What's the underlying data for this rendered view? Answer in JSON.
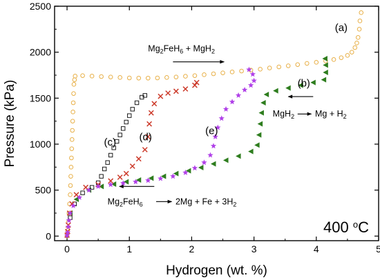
{
  "chart_data": {
    "type": "scatter",
    "xlabel": "Hydrogen (wt. %)",
    "ylabel": "Pressure (kPa)",
    "xlim": [
      -0.2,
      5.0
    ],
    "ylim": [
      -50,
      2500
    ],
    "xticks": [
      0,
      1,
      2,
      3,
      4,
      5
    ],
    "yticks": [
      0,
      500,
      1000,
      1500,
      2000,
      2500
    ],
    "grid": false,
    "legend": "none",
    "temperature_label": {
      "text": "400 ",
      "superscript": "o",
      "unit": "C"
    },
    "series": [
      {
        "label": "(a)",
        "marker": "circle",
        "color": "#e8b048",
        "points": [
          [
            0.0,
            0
          ],
          [
            0.01,
            60
          ],
          [
            0.02,
            150
          ],
          [
            0.03,
            250
          ],
          [
            0.04,
            350
          ],
          [
            0.05,
            450
          ],
          [
            0.055,
            550
          ],
          [
            0.06,
            650
          ],
          [
            0.065,
            750
          ],
          [
            0.07,
            850
          ],
          [
            0.075,
            950
          ],
          [
            0.08,
            1050
          ],
          [
            0.085,
            1150
          ],
          [
            0.09,
            1250
          ],
          [
            0.095,
            1350
          ],
          [
            0.1,
            1450
          ],
          [
            0.105,
            1550
          ],
          [
            0.11,
            1650
          ],
          [
            0.12,
            1700
          ],
          [
            0.13,
            1740
          ],
          [
            0.25,
            1745
          ],
          [
            0.4,
            1740
          ],
          [
            0.55,
            1735
          ],
          [
            0.7,
            1730
          ],
          [
            0.85,
            1725
          ],
          [
            1.0,
            1720
          ],
          [
            1.15,
            1718
          ],
          [
            1.3,
            1718
          ],
          [
            1.45,
            1720
          ],
          [
            1.6,
            1725
          ],
          [
            1.75,
            1730
          ],
          [
            1.9,
            1738
          ],
          [
            2.05,
            1745
          ],
          [
            2.2,
            1755
          ],
          [
            2.35,
            1765
          ],
          [
            2.5,
            1775
          ],
          [
            2.65,
            1785
          ],
          [
            2.8,
            1795
          ],
          [
            2.95,
            1805
          ],
          [
            3.1,
            1815
          ],
          [
            3.25,
            1828
          ],
          [
            3.4,
            1840
          ],
          [
            3.55,
            1852
          ],
          [
            3.7,
            1865
          ],
          [
            3.85,
            1878
          ],
          [
            4.0,
            1890
          ],
          [
            4.15,
            1905
          ],
          [
            4.28,
            1920
          ],
          [
            4.4,
            1940
          ],
          [
            4.5,
            1965
          ],
          [
            4.57,
            2000
          ],
          [
            4.62,
            2050
          ],
          [
            4.65,
            2100
          ],
          [
            4.67,
            2160
          ],
          [
            4.69,
            2250
          ],
          [
            4.7,
            2340
          ],
          [
            4.72,
            2430
          ]
        ]
      },
      {
        "label": "(b)",
        "marker": "triangle-left",
        "color": "#2e7d1e",
        "points": [
          [
            0.05,
            250
          ],
          [
            0.15,
            400
          ],
          [
            0.35,
            500
          ],
          [
            0.55,
            540
          ],
          [
            0.75,
            565
          ],
          [
            0.95,
            590
          ],
          [
            1.15,
            610
          ],
          [
            1.35,
            630
          ],
          [
            1.55,
            650
          ],
          [
            1.75,
            680
          ],
          [
            1.95,
            710
          ],
          [
            2.15,
            745
          ],
          [
            2.35,
            785
          ],
          [
            2.55,
            825
          ],
          [
            2.75,
            870
          ],
          [
            2.95,
            920
          ],
          [
            3.05,
            990
          ],
          [
            3.08,
            1100
          ],
          [
            3.1,
            1220
          ],
          [
            3.12,
            1340
          ],
          [
            3.15,
            1450
          ],
          [
            3.2,
            1540
          ],
          [
            3.35,
            1580
          ],
          [
            3.55,
            1610
          ],
          [
            3.75,
            1640
          ],
          [
            3.95,
            1670
          ],
          [
            4.12,
            1700
          ],
          [
            4.15,
            1780
          ],
          [
            4.15,
            1860
          ],
          [
            4.14,
            1930
          ]
        ]
      },
      {
        "label": "(c)",
        "marker": "square",
        "color": "#1a1a1a",
        "points": [
          [
            0.05,
            200
          ],
          [
            0.12,
            350
          ],
          [
            0.25,
            470
          ],
          [
            0.4,
            530
          ],
          [
            0.5,
            580
          ],
          [
            0.55,
            650
          ],
          [
            0.6,
            730
          ],
          [
            0.65,
            800
          ],
          [
            0.7,
            880
          ],
          [
            0.75,
            960
          ],
          [
            0.8,
            1030
          ],
          [
            0.85,
            1100
          ],
          [
            0.9,
            1170
          ],
          [
            0.95,
            1240
          ],
          [
            1.0,
            1310
          ],
          [
            1.05,
            1380
          ],
          [
            1.12,
            1450
          ],
          [
            1.2,
            1510
          ],
          [
            1.25,
            1530
          ]
        ]
      },
      {
        "label": "(d)",
        "marker": "x",
        "color": "#cc3a2a",
        "points": [
          [
            0.0,
            10
          ],
          [
            0.01,
            50
          ],
          [
            0.02,
            120
          ],
          [
            0.04,
            250
          ],
          [
            0.08,
            350
          ],
          [
            0.15,
            450
          ],
          [
            0.3,
            530
          ],
          [
            0.5,
            560
          ],
          [
            0.7,
            600
          ],
          [
            0.85,
            640
          ],
          [
            0.95,
            680
          ],
          [
            1.05,
            760
          ],
          [
            1.15,
            840
          ],
          [
            1.25,
            940
          ],
          [
            1.3,
            1080
          ],
          [
            1.32,
            1220
          ],
          [
            1.35,
            1340
          ],
          [
            1.4,
            1440
          ],
          [
            1.5,
            1520
          ],
          [
            1.62,
            1555
          ],
          [
            1.75,
            1575
          ],
          [
            1.9,
            1600
          ],
          [
            2.05,
            1640
          ],
          [
            2.08,
            1670
          ]
        ]
      },
      {
        "label": "(e)",
        "marker": "star",
        "color": "#b040e8",
        "points": [
          [
            0.0,
            5
          ],
          [
            0.01,
            40
          ],
          [
            0.02,
            100
          ],
          [
            0.03,
            170
          ],
          [
            0.05,
            250
          ],
          [
            0.1,
            330
          ],
          [
            0.2,
            420
          ],
          [
            0.35,
            500
          ],
          [
            0.5,
            540
          ],
          [
            0.7,
            560
          ],
          [
            0.9,
            575
          ],
          [
            1.1,
            590
          ],
          [
            1.3,
            605
          ],
          [
            1.5,
            625
          ],
          [
            1.7,
            650
          ],
          [
            1.9,
            690
          ],
          [
            2.05,
            740
          ],
          [
            2.2,
            800
          ],
          [
            2.3,
            880
          ],
          [
            2.35,
            980
          ],
          [
            2.38,
            1080
          ],
          [
            2.42,
            1180
          ],
          [
            2.48,
            1280
          ],
          [
            2.55,
            1380
          ],
          [
            2.65,
            1460
          ],
          [
            2.75,
            1530
          ],
          [
            2.85,
            1590
          ],
          [
            2.95,
            1640
          ],
          [
            3.0,
            1690
          ],
          [
            2.98,
            1760
          ],
          [
            2.92,
            1810
          ]
        ]
      }
    ],
    "annotations": [
      {
        "text": "(a)",
        "kind": "label",
        "x": 4.4,
        "y": 2230
      },
      {
        "text": "(b)",
        "kind": "label",
        "x": 3.8,
        "y": 1625
      },
      {
        "text": "(c)",
        "kind": "label",
        "x": 0.69,
        "y": 985
      },
      {
        "text": "(d)",
        "kind": "label",
        "x": 1.26,
        "y": 1040
      },
      {
        "text": "(e)",
        "kind": "label",
        "x": 2.32,
        "y": 1110
      },
      {
        "kind": "reaction",
        "x": 1.3,
        "y": 2010,
        "parts": [
          [
            "Mg",
            ""
          ],
          [
            "2",
            "sub"
          ],
          [
            "FeH",
            ""
          ],
          [
            "6",
            "sub"
          ],
          [
            " + MgH",
            ""
          ],
          [
            "2",
            "sub"
          ]
        ]
      },
      {
        "kind": "arrow",
        "x1": 1.7,
        "y1": 1895,
        "x2": 2.52,
        "y2": 1895
      },
      {
        "kind": "arrow",
        "x1": 3.95,
        "y1": 1517,
        "x2": 3.55,
        "y2": 1517
      },
      {
        "kind": "reaction",
        "x": 3.3,
        "y": 1300,
        "parts": [
          [
            "MgH",
            ""
          ],
          [
            "2",
            "sub"
          ],
          [
            "  ",
            ""
          ]
        ]
      },
      {
        "kind": "arrow",
        "x1": 3.7,
        "y1": 1328,
        "x2": 3.92,
        "y2": 1328
      },
      {
        "kind": "reaction",
        "x": 3.98,
        "y": 1300,
        "parts": [
          [
            "Mg + H",
            ""
          ],
          [
            "2",
            "sub"
          ]
        ]
      },
      {
        "kind": "arrow",
        "x1": 1.4,
        "y1": 540,
        "x2": 0.84,
        "y2": 540
      },
      {
        "kind": "reaction",
        "x": 0.65,
        "y": 345,
        "parts": [
          [
            "Mg",
            ""
          ],
          [
            "2",
            "sub"
          ],
          [
            "FeH",
            ""
          ],
          [
            "6",
            "sub"
          ]
        ]
      },
      {
        "kind": "arrow",
        "x1": 1.43,
        "y1": 375,
        "x2": 1.68,
        "y2": 375
      },
      {
        "kind": "reaction",
        "x": 1.74,
        "y": 345,
        "parts": [
          [
            "2Mg + Fe + 3H",
            ""
          ],
          [
            "2",
            "sub"
          ]
        ]
      }
    ]
  }
}
